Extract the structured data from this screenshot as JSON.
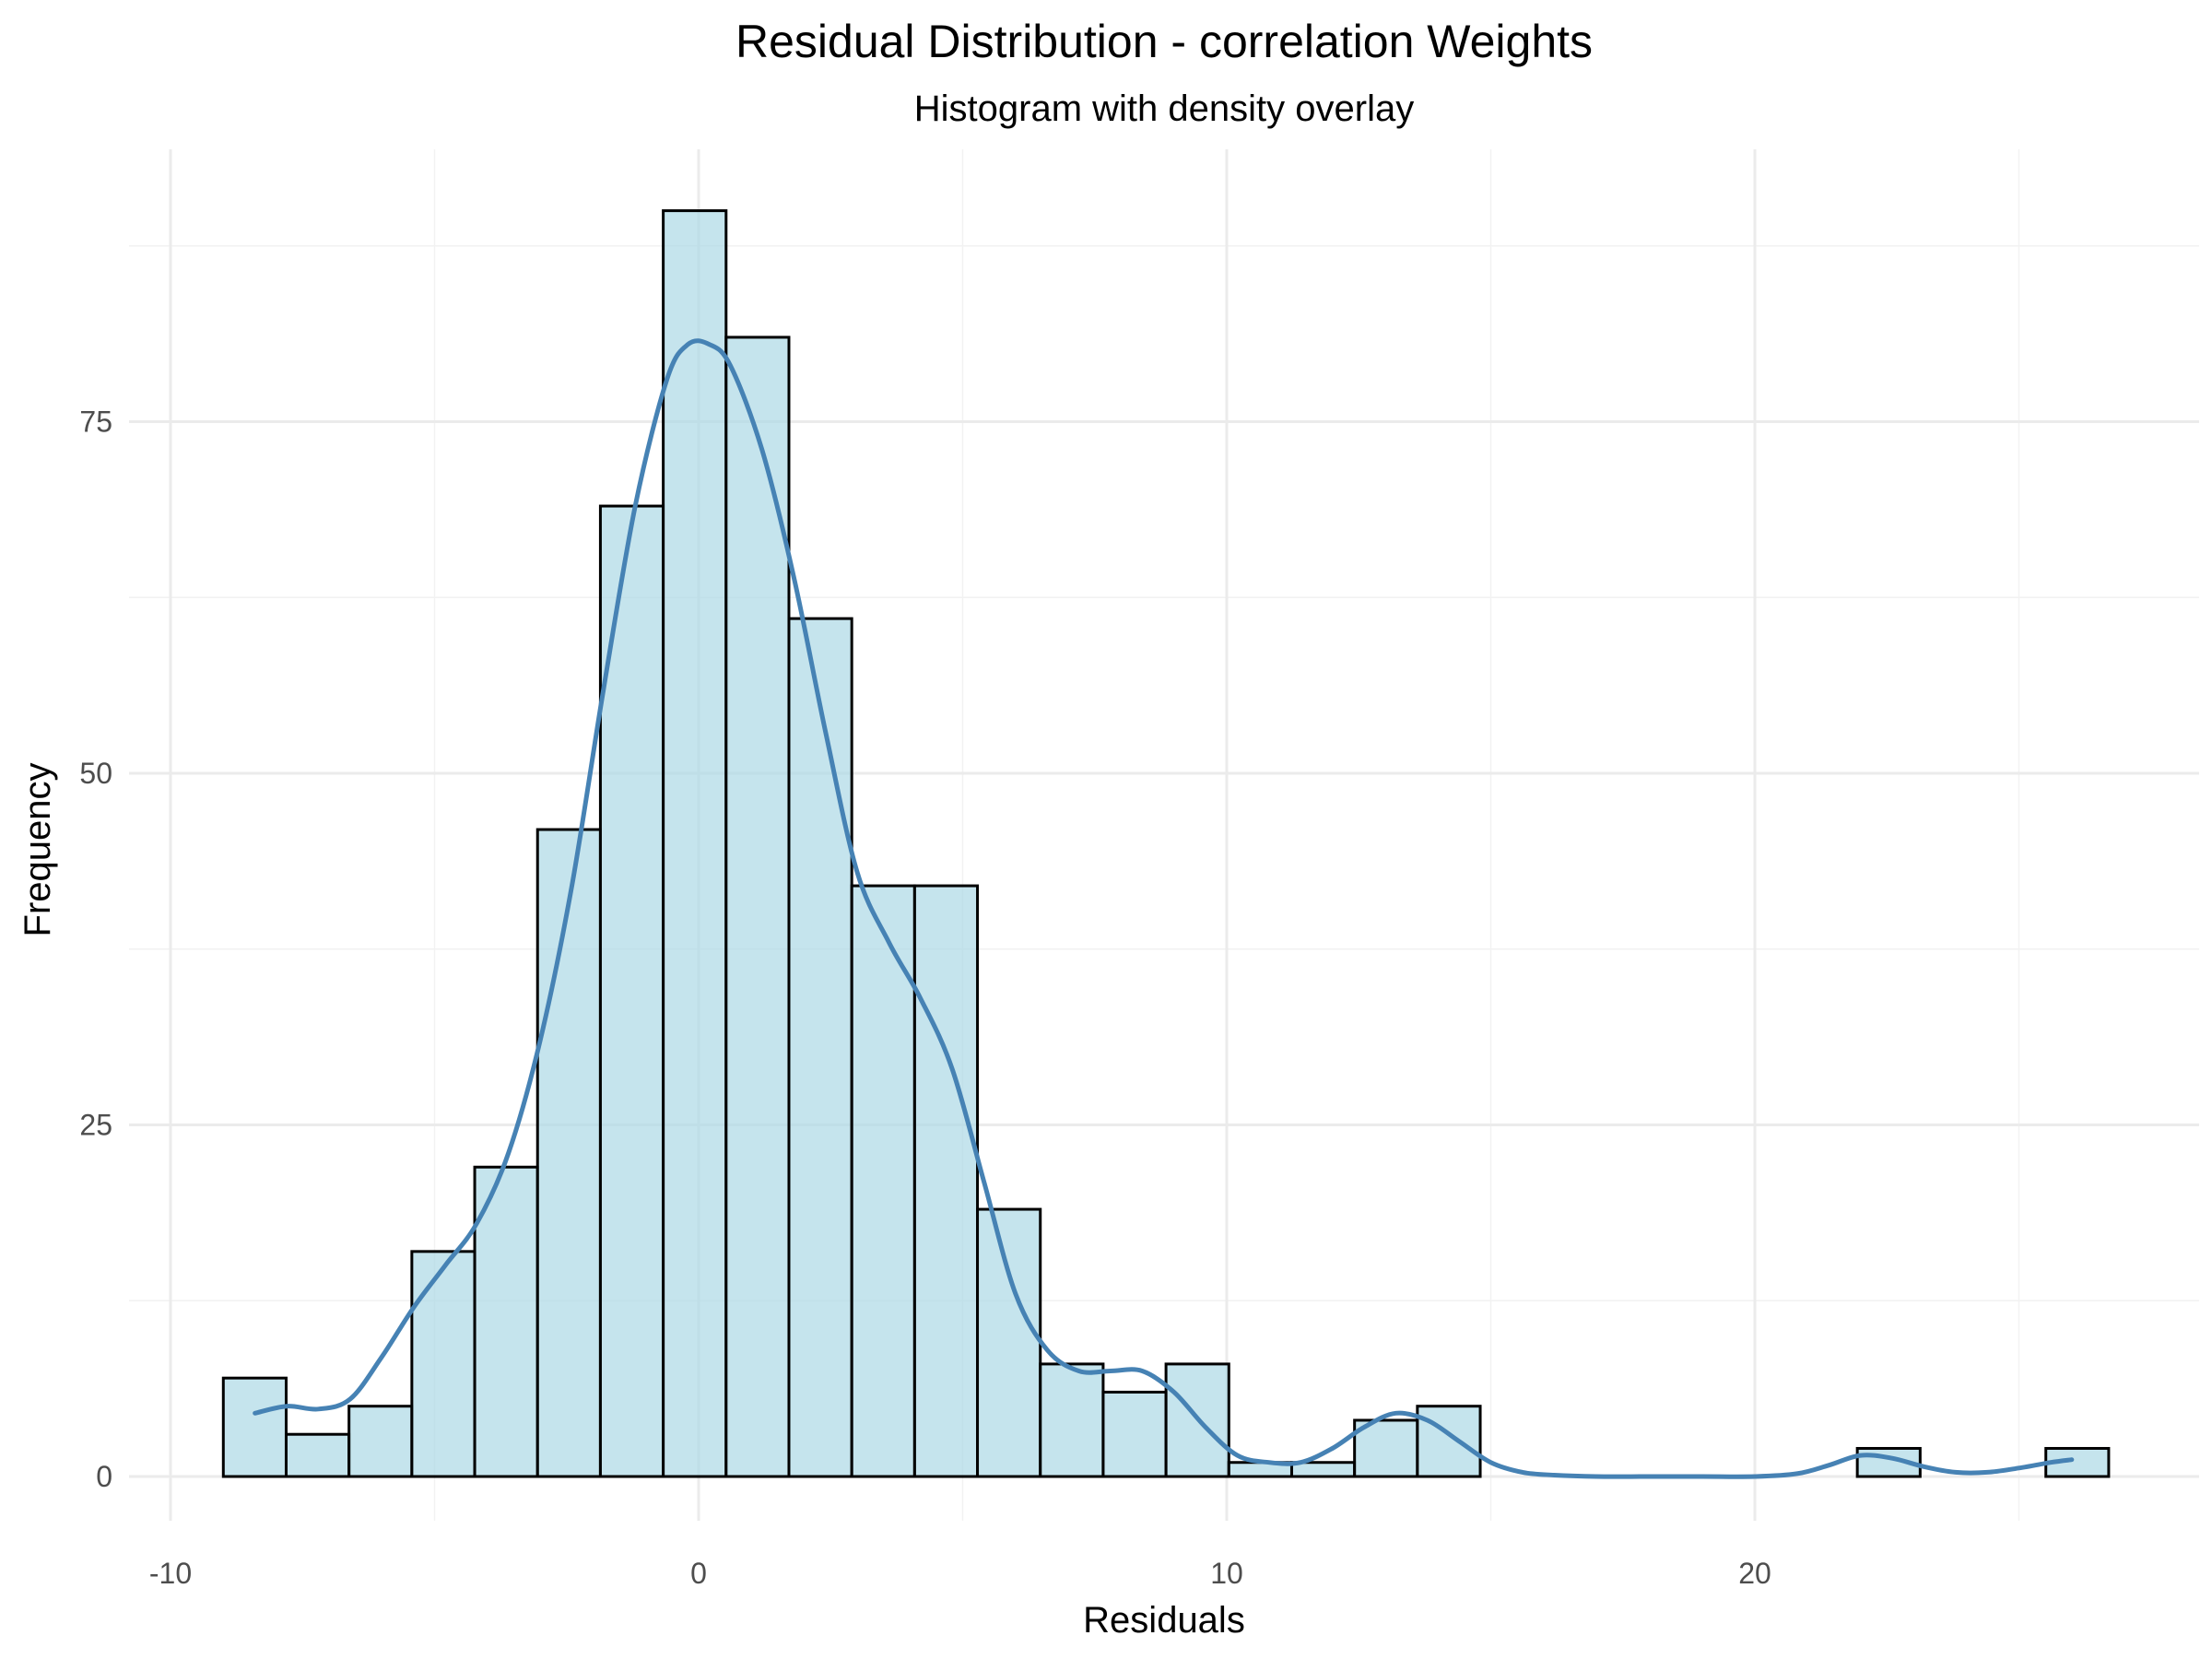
{
  "chart_data": {
    "type": "histogram",
    "title": "Residual Distribution - correlation Weights",
    "subtitle": "Histogram with density overlay",
    "xlabel": "Residuals",
    "ylabel": "Frequency",
    "xlim": [
      -10,
      28
    ],
    "ylim": [
      0,
      90
    ],
    "x_ticks": [
      -10,
      0,
      10,
      20
    ],
    "x_tick_labels": [
      "-10",
      "0",
      "10",
      "20"
    ],
    "y_ticks": [
      0,
      25,
      50,
      75
    ],
    "y_tick_labels": [
      "0",
      "25",
      "50",
      "75"
    ],
    "grid": true,
    "legend": "none",
    "bin_width": 1.19,
    "bins": [
      {
        "x0": -9.0,
        "x1": -7.81,
        "count": 7
      },
      {
        "x0": -7.81,
        "x1": -6.62,
        "count": 3
      },
      {
        "x0": -6.62,
        "x1": -5.43,
        "count": 5
      },
      {
        "x0": -5.43,
        "x1": -4.24,
        "count": 16
      },
      {
        "x0": -4.24,
        "x1": -3.05,
        "count": 22
      },
      {
        "x0": -3.05,
        "x1": -1.86,
        "count": 46
      },
      {
        "x0": -1.86,
        "x1": -0.67,
        "count": 69
      },
      {
        "x0": -0.67,
        "x1": 0.52,
        "count": 90
      },
      {
        "x0": 0.52,
        "x1": 1.71,
        "count": 81
      },
      {
        "x0": 1.71,
        "x1": 2.9,
        "count": 61
      },
      {
        "x0": 2.9,
        "x1": 4.09,
        "count": 42
      },
      {
        "x0": 4.09,
        "x1": 5.28,
        "count": 42
      },
      {
        "x0": 5.28,
        "x1": 6.47,
        "count": 19
      },
      {
        "x0": 6.47,
        "x1": 7.66,
        "count": 8
      },
      {
        "x0": 7.66,
        "x1": 8.85,
        "count": 6
      },
      {
        "x0": 8.85,
        "x1": 10.04,
        "count": 8
      },
      {
        "x0": 10.04,
        "x1": 11.23,
        "count": 1
      },
      {
        "x0": 11.23,
        "x1": 12.42,
        "count": 1
      },
      {
        "x0": 12.42,
        "x1": 13.61,
        "count": 4
      },
      {
        "x0": 13.61,
        "x1": 14.8,
        "count": 5
      },
      {
        "x0": 14.8,
        "x1": 15.99,
        "count": 0
      },
      {
        "x0": 15.99,
        "x1": 17.18,
        "count": 0
      },
      {
        "x0": 17.18,
        "x1": 18.37,
        "count": 0
      },
      {
        "x0": 18.37,
        "x1": 19.56,
        "count": 0
      },
      {
        "x0": 19.56,
        "x1": 20.75,
        "count": 0
      },
      {
        "x0": 20.75,
        "x1": 21.94,
        "count": 0
      },
      {
        "x0": 21.94,
        "x1": 23.13,
        "count": 2
      },
      {
        "x0": 23.13,
        "x1": 24.32,
        "count": 0
      },
      {
        "x0": 24.32,
        "x1": 25.51,
        "count": 0
      },
      {
        "x0": 25.51,
        "x1": 26.7,
        "count": 2
      }
    ],
    "density": {
      "x": [
        -8.4,
        -7.8,
        -7.2,
        -6.6,
        -6.0,
        -5.4,
        -4.8,
        -4.2,
        -3.6,
        -3.0,
        -2.4,
        -1.8,
        -1.2,
        -0.6,
        -0.2,
        0.2,
        0.6,
        1.2,
        1.8,
        2.4,
        3.0,
        3.6,
        4.2,
        4.8,
        5.4,
        6.0,
        6.6,
        7.2,
        7.8,
        8.4,
        9.0,
        9.6,
        10.2,
        10.8,
        11.4,
        12.0,
        12.6,
        13.2,
        13.8,
        14.4,
        15.0,
        15.6,
        16.2,
        17.0,
        18.0,
        19.0,
        20.0,
        20.8,
        21.4,
        22.0,
        22.6,
        23.2,
        23.8,
        24.4,
        25.0,
        25.6,
        26.0
      ],
      "y": [
        4.5,
        5.0,
        4.8,
        5.5,
        8.5,
        12.0,
        15.0,
        18.0,
        23.0,
        31.0,
        42.0,
        56.0,
        69.0,
        78.0,
        80.5,
        80.5,
        79.0,
        73.0,
        64.0,
        53.0,
        43.0,
        38.0,
        34.0,
        29.0,
        21.0,
        13.0,
        9.0,
        7.5,
        7.5,
        7.5,
        6.0,
        3.5,
        1.5,
        1.0,
        1.0,
        2.0,
        3.5,
        4.5,
        4.0,
        2.5,
        1.0,
        0.3,
        0.1,
        0.0,
        0.0,
        0.0,
        0.0,
        0.2,
        0.8,
        1.5,
        1.3,
        0.7,
        0.3,
        0.3,
        0.6,
        1.0,
        1.2
      ]
    },
    "colors": {
      "bar_fill": "#add8e6",
      "bar_outline": "#000000",
      "density_line": "#4682b4"
    },
    "bar_fill_opacity": 0.7
  }
}
